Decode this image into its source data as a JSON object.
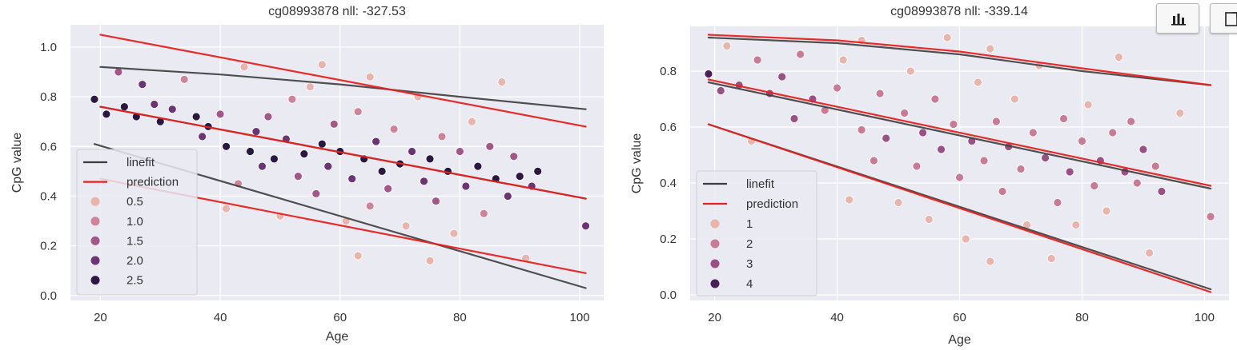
{
  "chart_data": [
    {
      "type": "scatter",
      "title": "cg08993878 nll:  -327.53",
      "xlabel": "Age",
      "ylabel": "CpG value",
      "xlim": [
        15,
        104
      ],
      "ylim": [
        -0.02,
        1.09
      ],
      "xticks": [
        20,
        40,
        60,
        80,
        100
      ],
      "yticks": [
        0.0,
        0.2,
        0.4,
        0.6,
        0.8,
        1.0
      ],
      "ytick_labels": [
        "0.0",
        "0.2",
        "0.4",
        "0.6",
        "0.8",
        "1.0"
      ],
      "grid": true,
      "legend_position": "center-left",
      "lines": [
        {
          "name": "linefit",
          "color": "#3d3d3d",
          "x": [
            20,
            40,
            60,
            80,
            101
          ],
          "y": [
            0.92,
            0.89,
            0.85,
            0.8,
            0.75
          ]
        },
        {
          "name": "linefit",
          "color": "#3d3d3d",
          "x": [
            20,
            101
          ],
          "y": [
            0.76,
            0.39
          ]
        },
        {
          "name": "linefit",
          "color": "#3d3d3d",
          "x": [
            19,
            101
          ],
          "y": [
            0.61,
            0.03
          ]
        },
        {
          "name": "prediction",
          "color": "#e8201c",
          "x": [
            20,
            101
          ],
          "y": [
            1.05,
            0.68
          ]
        },
        {
          "name": "prediction",
          "color": "#e8201c",
          "x": [
            20,
            101
          ],
          "y": [
            0.76,
            0.39
          ]
        },
        {
          "name": "prediction",
          "color": "#e8201c",
          "x": [
            20,
            101
          ],
          "y": [
            0.47,
            0.09
          ]
        }
      ],
      "legend": {
        "lines": [
          "linefit",
          "prediction"
        ],
        "hue_levels": [
          "0.5",
          "1.0",
          "1.5",
          "2.0",
          "2.5"
        ]
      },
      "hue_colors": [
        "#e8b4ac",
        "#cd8398",
        "#a35788",
        "#6c3474",
        "#2a1742"
      ],
      "points": [
        {
          "x": 19,
          "y": 0.79,
          "h": 5
        },
        {
          "x": 21,
          "y": 0.73,
          "h": 5
        },
        {
          "x": 23,
          "y": 0.9,
          "h": 3
        },
        {
          "x": 24,
          "y": 0.76,
          "h": 5
        },
        {
          "x": 26,
          "y": 0.72,
          "h": 5
        },
        {
          "x": 27,
          "y": 0.85,
          "h": 4
        },
        {
          "x": 29,
          "y": 0.77,
          "h": 4
        },
        {
          "x": 30,
          "y": 0.7,
          "h": 5
        },
        {
          "x": 32,
          "y": 0.75,
          "h": 4
        },
        {
          "x": 34,
          "y": 0.87,
          "h": 2
        },
        {
          "x": 36,
          "y": 0.72,
          "h": 5
        },
        {
          "x": 37,
          "y": 0.64,
          "h": 4
        },
        {
          "x": 38,
          "y": 0.68,
          "h": 5
        },
        {
          "x": 40,
          "y": 0.73,
          "h": 3
        },
        {
          "x": 41,
          "y": 0.6,
          "h": 5
        },
        {
          "x": 41,
          "y": 0.35,
          "h": 1
        },
        {
          "x": 43,
          "y": 0.45,
          "h": 2
        },
        {
          "x": 44,
          "y": 0.92,
          "h": 1
        },
        {
          "x": 45,
          "y": 0.58,
          "h": 5
        },
        {
          "x": 46,
          "y": 0.66,
          "h": 4
        },
        {
          "x": 47,
          "y": 0.52,
          "h": 4
        },
        {
          "x": 48,
          "y": 0.72,
          "h": 3
        },
        {
          "x": 49,
          "y": 0.55,
          "h": 5
        },
        {
          "x": 50,
          "y": 0.32,
          "h": 1
        },
        {
          "x": 51,
          "y": 0.63,
          "h": 4
        },
        {
          "x": 52,
          "y": 0.79,
          "h": 2
        },
        {
          "x": 53,
          "y": 0.48,
          "h": 3
        },
        {
          "x": 54,
          "y": 0.57,
          "h": 5
        },
        {
          "x": 55,
          "y": 0.84,
          "h": 1
        },
        {
          "x": 56,
          "y": 0.41,
          "h": 3
        },
        {
          "x": 57,
          "y": 0.61,
          "h": 5
        },
        {
          "x": 57,
          "y": 0.93,
          "h": 1
        },
        {
          "x": 58,
          "y": 0.52,
          "h": 4
        },
        {
          "x": 59,
          "y": 0.69,
          "h": 3
        },
        {
          "x": 60,
          "y": 0.58,
          "h": 5
        },
        {
          "x": 61,
          "y": 0.3,
          "h": 1
        },
        {
          "x": 62,
          "y": 0.47,
          "h": 4
        },
        {
          "x": 63,
          "y": 0.74,
          "h": 2
        },
        {
          "x": 63,
          "y": 0.16,
          "h": 1
        },
        {
          "x": 64,
          "y": 0.55,
          "h": 5
        },
        {
          "x": 65,
          "y": 0.88,
          "h": 1
        },
        {
          "x": 65,
          "y": 0.36,
          "h": 2
        },
        {
          "x": 66,
          "y": 0.62,
          "h": 4
        },
        {
          "x": 67,
          "y": 0.5,
          "h": 5
        },
        {
          "x": 68,
          "y": 0.43,
          "h": 3
        },
        {
          "x": 69,
          "y": 0.67,
          "h": 2
        },
        {
          "x": 70,
          "y": 0.53,
          "h": 5
        },
        {
          "x": 71,
          "y": 0.28,
          "h": 1
        },
        {
          "x": 72,
          "y": 0.58,
          "h": 4
        },
        {
          "x": 73,
          "y": 0.8,
          "h": 1
        },
        {
          "x": 74,
          "y": 0.46,
          "h": 4
        },
        {
          "x": 75,
          "y": 0.55,
          "h": 5
        },
        {
          "x": 75,
          "y": 0.14,
          "h": 1
        },
        {
          "x": 76,
          "y": 0.38,
          "h": 3
        },
        {
          "x": 77,
          "y": 0.64,
          "h": 2
        },
        {
          "x": 78,
          "y": 0.5,
          "h": 5
        },
        {
          "x": 79,
          "y": 0.25,
          "h": 1
        },
        {
          "x": 80,
          "y": 0.58,
          "h": 3
        },
        {
          "x": 81,
          "y": 0.44,
          "h": 4
        },
        {
          "x": 82,
          "y": 0.7,
          "h": 1
        },
        {
          "x": 83,
          "y": 0.52,
          "h": 5
        },
        {
          "x": 84,
          "y": 0.33,
          "h": 2
        },
        {
          "x": 85,
          "y": 0.6,
          "h": 3
        },
        {
          "x": 86,
          "y": 0.47,
          "h": 5
        },
        {
          "x": 87,
          "y": 0.86,
          "h": 1
        },
        {
          "x": 88,
          "y": 0.4,
          "h": 4
        },
        {
          "x": 89,
          "y": 0.56,
          "h": 3
        },
        {
          "x": 90,
          "y": 0.48,
          "h": 5
        },
        {
          "x": 91,
          "y": 0.15,
          "h": 1
        },
        {
          "x": 92,
          "y": 0.44,
          "h": 4
        },
        {
          "x": 93,
          "y": 0.5,
          "h": 5
        },
        {
          "x": 101,
          "y": 0.28,
          "h": 4
        }
      ]
    },
    {
      "type": "scatter",
      "title": "cg08993878 nll:  -339.14",
      "xlabel": "Age",
      "ylabel": "CpG value",
      "xlim": [
        16,
        104
      ],
      "ylim": [
        -0.02,
        0.96
      ],
      "xticks": [
        20,
        40,
        60,
        80,
        100
      ],
      "yticks": [
        0.0,
        0.2,
        0.4,
        0.6,
        0.8
      ],
      "ytick_labels": [
        "0.0",
        "0.2",
        "0.4",
        "0.6",
        "0.8"
      ],
      "grid": true,
      "legend_position": "lower-left",
      "lines": [
        {
          "name": "linefit",
          "color": "#3d3d3d",
          "x": [
            19,
            40,
            60,
            80,
            101
          ],
          "y": [
            0.92,
            0.9,
            0.86,
            0.8,
            0.75
          ]
        },
        {
          "name": "linefit",
          "color": "#3d3d3d",
          "x": [
            19,
            101
          ],
          "y": [
            0.76,
            0.38
          ]
        },
        {
          "name": "linefit",
          "color": "#3d3d3d",
          "x": [
            19,
            101
          ],
          "y": [
            0.61,
            0.02
          ]
        },
        {
          "name": "prediction",
          "color": "#e8201c",
          "x": [
            19,
            40,
            60,
            80,
            101
          ],
          "y": [
            0.93,
            0.91,
            0.87,
            0.81,
            0.75
          ]
        },
        {
          "name": "prediction",
          "color": "#e8201c",
          "x": [
            19,
            101
          ],
          "y": [
            0.77,
            0.39
          ]
        },
        {
          "name": "prediction",
          "color": "#e8201c",
          "x": [
            19,
            101
          ],
          "y": [
            0.61,
            0.01
          ]
        }
      ],
      "legend": {
        "lines": [
          "linefit",
          "prediction"
        ],
        "hue_levels": [
          "1",
          "2",
          "3",
          "4"
        ]
      },
      "hue_colors": [
        "#e8b4ac",
        "#c97a95",
        "#9a4f85",
        "#4a2057"
      ],
      "points": [
        {
          "x": 19,
          "y": 0.79,
          "h": 4
        },
        {
          "x": 21,
          "y": 0.73,
          "h": 3
        },
        {
          "x": 22,
          "y": 0.89,
          "h": 1
        },
        {
          "x": 24,
          "y": 0.75,
          "h": 3
        },
        {
          "x": 26,
          "y": 0.55,
          "h": 1
        },
        {
          "x": 27,
          "y": 0.84,
          "h": 2
        },
        {
          "x": 29,
          "y": 0.72,
          "h": 3
        },
        {
          "x": 31,
          "y": 0.78,
          "h": 3
        },
        {
          "x": 33,
          "y": 0.63,
          "h": 3
        },
        {
          "x": 34,
          "y": 0.86,
          "h": 2
        },
        {
          "x": 36,
          "y": 0.7,
          "h": 3
        },
        {
          "x": 38,
          "y": 0.66,
          "h": 2
        },
        {
          "x": 40,
          "y": 0.74,
          "h": 2
        },
        {
          "x": 41,
          "y": 0.84,
          "h": 1
        },
        {
          "x": 42,
          "y": 0.34,
          "h": 1
        },
        {
          "x": 44,
          "y": 0.59,
          "h": 2
        },
        {
          "x": 44,
          "y": 0.91,
          "h": 1
        },
        {
          "x": 46,
          "y": 0.48,
          "h": 2
        },
        {
          "x": 47,
          "y": 0.72,
          "h": 2
        },
        {
          "x": 48,
          "y": 0.56,
          "h": 3
        },
        {
          "x": 50,
          "y": 0.33,
          "h": 1
        },
        {
          "x": 51,
          "y": 0.65,
          "h": 2
        },
        {
          "x": 52,
          "y": 0.8,
          "h": 1
        },
        {
          "x": 53,
          "y": 0.46,
          "h": 2
        },
        {
          "x": 54,
          "y": 0.58,
          "h": 3
        },
        {
          "x": 55,
          "y": 0.27,
          "h": 1
        },
        {
          "x": 56,
          "y": 0.7,
          "h": 2
        },
        {
          "x": 57,
          "y": 0.52,
          "h": 3
        },
        {
          "x": 58,
          "y": 0.92,
          "h": 1
        },
        {
          "x": 59,
          "y": 0.61,
          "h": 2
        },
        {
          "x": 60,
          "y": 0.42,
          "h": 2
        },
        {
          "x": 61,
          "y": 0.2,
          "h": 1
        },
        {
          "x": 62,
          "y": 0.55,
          "h": 3
        },
        {
          "x": 63,
          "y": 0.76,
          "h": 1
        },
        {
          "x": 64,
          "y": 0.48,
          "h": 2
        },
        {
          "x": 65,
          "y": 0.12,
          "h": 1
        },
        {
          "x": 65,
          "y": 0.88,
          "h": 1
        },
        {
          "x": 66,
          "y": 0.62,
          "h": 2
        },
        {
          "x": 67,
          "y": 0.37,
          "h": 2
        },
        {
          "x": 68,
          "y": 0.53,
          "h": 3
        },
        {
          "x": 69,
          "y": 0.7,
          "h": 1
        },
        {
          "x": 70,
          "y": 0.45,
          "h": 2
        },
        {
          "x": 71,
          "y": 0.25,
          "h": 1
        },
        {
          "x": 72,
          "y": 0.58,
          "h": 2
        },
        {
          "x": 73,
          "y": 0.82,
          "h": 1
        },
        {
          "x": 74,
          "y": 0.49,
          "h": 3
        },
        {
          "x": 75,
          "y": 0.13,
          "h": 1
        },
        {
          "x": 76,
          "y": 0.33,
          "h": 2
        },
        {
          "x": 77,
          "y": 0.63,
          "h": 2
        },
        {
          "x": 78,
          "y": 0.44,
          "h": 3
        },
        {
          "x": 79,
          "y": 0.25,
          "h": 1
        },
        {
          "x": 80,
          "y": 0.55,
          "h": 2
        },
        {
          "x": 81,
          "y": 0.68,
          "h": 1
        },
        {
          "x": 82,
          "y": 0.39,
          "h": 2
        },
        {
          "x": 83,
          "y": 0.48,
          "h": 3
        },
        {
          "x": 84,
          "y": 0.3,
          "h": 1
        },
        {
          "x": 85,
          "y": 0.58,
          "h": 2
        },
        {
          "x": 86,
          "y": 0.85,
          "h": 1
        },
        {
          "x": 87,
          "y": 0.44,
          "h": 3
        },
        {
          "x": 88,
          "y": 0.62,
          "h": 2
        },
        {
          "x": 89,
          "y": 0.4,
          "h": 2
        },
        {
          "x": 90,
          "y": 0.52,
          "h": 3
        },
        {
          "x": 91,
          "y": 0.15,
          "h": 1
        },
        {
          "x": 92,
          "y": 0.46,
          "h": 2
        },
        {
          "x": 93,
          "y": 0.37,
          "h": 3
        },
        {
          "x": 96,
          "y": 0.65,
          "h": 1
        },
        {
          "x": 101,
          "y": 0.28,
          "h": 2
        }
      ]
    }
  ],
  "toolbar": {
    "buttons": [
      {
        "icon": "bar-chart-icon"
      },
      {
        "icon": "export-icon"
      }
    ]
  }
}
